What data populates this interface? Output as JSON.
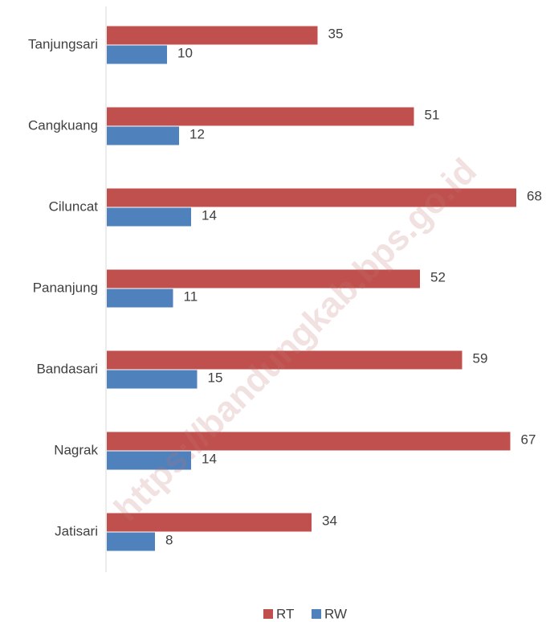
{
  "chart_data": {
    "type": "bar",
    "orientation": "horizontal",
    "categories": [
      "Tanjungsari",
      "Cangkuang",
      "Ciluncat",
      "Pananjung",
      "Bandasari",
      "Nagrak",
      "Jatisari"
    ],
    "series": [
      {
        "name": "RT",
        "color": "#c0504d",
        "values": [
          35,
          51,
          68,
          52,
          59,
          67,
          34
        ]
      },
      {
        "name": "RW",
        "color": "#4f81bd",
        "values": [
          10,
          12,
          14,
          11,
          15,
          14,
          8
        ]
      }
    ],
    "legend": "bottom",
    "watermark": "https://bandungkab.bps.go.id"
  }
}
